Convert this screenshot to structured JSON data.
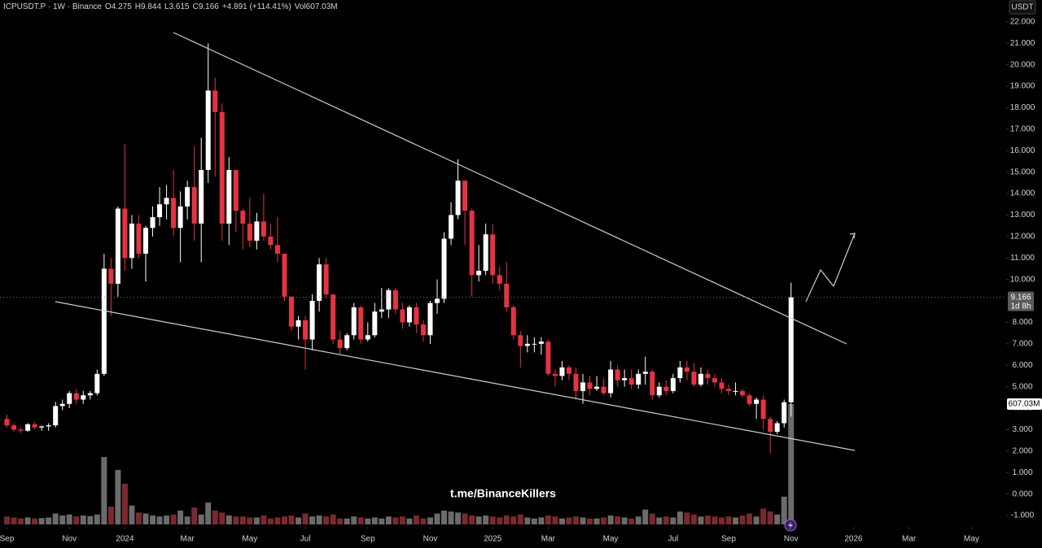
{
  "chart_data": {
    "type": "candlestick",
    "header": [
      "ICPUSDT.P · 1W · Binance",
      "O4.275",
      "H9.844",
      "L3.615",
      "C9.166",
      "+4.891 (+114.41%)",
      "Vol607.03M"
    ],
    "y_axis_label": "USDT",
    "last_price_label": "9.166",
    "countdown": "1d 8h",
    "volume_label": "607.03M",
    "watermark": "t.me/BinanceKillers",
    "up_color": "#ffffff",
    "down_color": "#e53341",
    "volume_up_color": "#6b6b6b",
    "volume_down_color": "#7a2a2f",
    "xlim": [
      -1,
      144
    ],
    "ylim": [
      -1.53,
      23.02
    ],
    "xticks": [
      {
        "value": 0,
        "label": "Sep"
      },
      {
        "value": 9,
        "label": "Nov"
      },
      {
        "value": 17,
        "label": "2024"
      },
      {
        "value": 26,
        "label": "Mar"
      },
      {
        "value": 35,
        "label": "May"
      },
      {
        "value": 43,
        "label": "Jul"
      },
      {
        "value": 52,
        "label": "Sep"
      },
      {
        "value": 61,
        "label": "Nov"
      },
      {
        "value": 70,
        "label": "2025"
      },
      {
        "value": 78,
        "label": "Mar"
      },
      {
        "value": 87,
        "label": "May"
      },
      {
        "value": 96,
        "label": "Jul"
      },
      {
        "value": 104,
        "label": "Sep"
      },
      {
        "value": 113,
        "label": "Nov"
      },
      {
        "value": 122,
        "label": "2026"
      },
      {
        "value": 130,
        "label": "Mar"
      },
      {
        "value": 139,
        "label": "May"
      }
    ],
    "yticks": [
      {
        "value": 22,
        "label": "22.000"
      },
      {
        "value": 21,
        "label": "21.000"
      },
      {
        "value": 20,
        "label": "20.000"
      },
      {
        "value": 19,
        "label": "19.000"
      },
      {
        "value": 18,
        "label": "18.000"
      },
      {
        "value": 17,
        "label": "17.000"
      },
      {
        "value": 16,
        "label": "16.000"
      },
      {
        "value": 15,
        "label": "15.000"
      },
      {
        "value": 14,
        "label": "14.000"
      },
      {
        "value": 13,
        "label": "13.000"
      },
      {
        "value": 12,
        "label": "12.000"
      },
      {
        "value": 11,
        "label": "11.000"
      },
      {
        "value": 10,
        "label": "10.000"
      },
      {
        "value": 8,
        "label": "8.000"
      },
      {
        "value": 7,
        "label": "7.000"
      },
      {
        "value": 6,
        "label": "6.000"
      },
      {
        "value": 5,
        "label": "5.000"
      },
      {
        "value": 4,
        "label": "4.000"
      },
      {
        "value": 3,
        "label": "3.000"
      },
      {
        "value": 2,
        "label": "2.000"
      },
      {
        "value": 1,
        "label": "1.000"
      },
      {
        "value": 0,
        "label": "0.000"
      },
      {
        "value": -1,
        "label": "-1.000"
      }
    ],
    "open": [
      3.5,
      3.2,
      3.0,
      2.95,
      3.25,
      3.1,
      3.15,
      3.2,
      4.1,
      4.2,
      4.7,
      4.4,
      4.6,
      4.7,
      5.6,
      10.5,
      9.8,
      13.3,
      11.0,
      12.6,
      11.2,
      12.4,
      12.9,
      13.5,
      13.8,
      12.4,
      13.4,
      14.3,
      12.6,
      15.1,
      18.8,
      17.8,
      12.6,
      15.1,
      13.2,
      12.6,
      11.8,
      12.7,
      12.0,
      11.6,
      11.2,
      9.2,
      7.8,
      8.1,
      7.2,
      9.0,
      10.7,
      9.3,
      7.2,
      6.8,
      7.4,
      8.7,
      7.2,
      7.4,
      8.5,
      8.6,
      9.5,
      8.6,
      8.0,
      8.7,
      7.9,
      7.4,
      8.9,
      9.1,
      11.9,
      13.0,
      14.6,
      13.2,
      10.2,
      10.4,
      12.1,
      10.2,
      9.8,
      8.7,
      7.4,
      6.9,
      7.0,
      7.0,
      7.1,
      5.6,
      5.5,
      5.9,
      5.6,
      4.8,
      5.2,
      4.9,
      5.0,
      4.7,
      5.8,
      5.3,
      5.4,
      5.1,
      5.6,
      5.7,
      4.6,
      5.0,
      4.8,
      5.4,
      5.9,
      5.7,
      5.1,
      5.6,
      5.4,
      5.2,
      4.9,
      4.8,
      4.8,
      4.6,
      4.2,
      4.4,
      3.5,
      2.9,
      3.3,
      4.275
    ],
    "high": [
      3.7,
      3.3,
      3.1,
      3.3,
      3.35,
      3.2,
      3.3,
      4.3,
      4.4,
      4.8,
      4.9,
      4.8,
      4.8,
      5.8,
      11.2,
      11.0,
      13.4,
      16.3,
      13.0,
      13.0,
      12.5,
      13.4,
      14.3,
      14.4,
      15.1,
      14.1,
      14.6,
      16.2,
      16.6,
      21.0,
      19.4,
      18.2,
      15.7,
      15.1,
      13.3,
      13.8,
      13.1,
      14.0,
      12.6,
      12.9,
      11.2,
      9.2,
      8.3,
      8.3,
      9.3,
      11.0,
      11.0,
      9.3,
      7.6,
      7.5,
      8.9,
      8.8,
      8.0,
      8.9,
      9.6,
      9.6,
      9.6,
      8.9,
      8.8,
      8.9,
      8.1,
      9.0,
      10.0,
      12.2,
      13.6,
      15.6,
      14.6,
      13.3,
      11.6,
      12.6,
      12.6,
      10.6,
      10.8,
      8.8,
      7.6,
      7.4,
      7.3,
      7.3,
      7.2,
      5.8,
      6.2,
      6.0,
      5.9,
      5.6,
      5.5,
      5.5,
      5.4,
      6.2,
      6.0,
      5.8,
      5.8,
      5.8,
      6.4,
      5.8,
      5.2,
      5.3,
      5.6,
      6.2,
      6.2,
      6.1,
      5.9,
      5.8,
      5.6,
      5.4,
      5.1,
      5.2,
      4.9,
      4.7,
      4.5,
      4.6,
      3.6,
      3.4,
      4.4,
      9.844
    ],
    "low": [
      3.1,
      2.9,
      2.85,
      2.9,
      3.0,
      2.95,
      2.95,
      3.1,
      3.9,
      4.0,
      4.2,
      4.2,
      4.4,
      4.6,
      5.5,
      8.3,
      9.2,
      10.4,
      10.5,
      11.0,
      9.9,
      12.0,
      12.5,
      12.8,
      12.0,
      10.8,
      12.8,
      11.8,
      10.8,
      14.5,
      14.8,
      11.8,
      11.6,
      12.2,
      11.4,
      11.5,
      11.4,
      11.8,
      11.4,
      10.8,
      9.0,
      7.6,
      7.2,
      5.8,
      6.7,
      8.5,
      9.1,
      7.0,
      6.5,
      6.7,
      7.2,
      7.0,
      7.1,
      7.3,
      8.2,
      8.2,
      8.4,
      7.7,
      7.8,
      7.5,
      7.1,
      7.0,
      8.4,
      8.9,
      11.6,
      12.8,
      11.6,
      9.2,
      9.9,
      10.2,
      9.8,
      9.5,
      8.5,
      7.2,
      5.9,
      6.6,
      6.6,
      6.5,
      5.5,
      5.0,
      5.3,
      5.3,
      4.4,
      4.2,
      4.6,
      4.8,
      4.6,
      4.5,
      5.0,
      5.0,
      4.9,
      4.9,
      5.1,
      4.4,
      4.5,
      4.6,
      4.7,
      5.2,
      5.3,
      5.0,
      5.0,
      5.1,
      5.0,
      4.7,
      4.6,
      4.6,
      4.5,
      4.1,
      3.5,
      3.0,
      1.9,
      2.8,
      3.1,
      3.615
    ],
    "close": [
      3.2,
      3.0,
      2.95,
      3.25,
      3.1,
      3.15,
      3.2,
      4.1,
      4.2,
      4.7,
      4.4,
      4.6,
      4.7,
      5.6,
      10.5,
      9.8,
      13.3,
      11.0,
      12.6,
      11.2,
      12.4,
      12.9,
      13.5,
      13.8,
      12.4,
      13.4,
      14.3,
      12.6,
      15.1,
      18.8,
      17.8,
      12.6,
      15.1,
      13.2,
      12.6,
      11.8,
      12.7,
      12.0,
      11.6,
      11.2,
      9.2,
      7.8,
      8.1,
      7.2,
      9.0,
      10.7,
      9.3,
      7.2,
      6.8,
      7.4,
      8.7,
      7.2,
      7.4,
      8.5,
      8.6,
      9.5,
      8.6,
      8.0,
      8.7,
      7.9,
      7.4,
      8.9,
      9.1,
      11.9,
      13.0,
      14.6,
      13.2,
      10.2,
      10.4,
      12.1,
      10.2,
      9.8,
      8.7,
      7.4,
      6.9,
      7.0,
      7.0,
      7.1,
      5.6,
      5.5,
      5.9,
      5.6,
      4.8,
      5.2,
      4.9,
      5.0,
      4.7,
      5.8,
      5.3,
      5.4,
      5.1,
      5.6,
      5.7,
      4.6,
      5.0,
      4.8,
      5.4,
      5.9,
      5.7,
      5.1,
      5.6,
      5.4,
      5.2,
      4.9,
      4.8,
      4.8,
      4.6,
      4.2,
      4.4,
      3.5,
      2.9,
      3.3,
      4.275,
      9.166
    ],
    "volume": [
      40,
      35,
      30,
      35,
      30,
      32,
      35,
      55,
      45,
      50,
      40,
      45,
      42,
      50,
      340,
      90,
      275,
      205,
      95,
      60,
      55,
      45,
      40,
      45,
      50,
      70,
      40,
      85,
      50,
      110,
      70,
      60,
      45,
      40,
      40,
      35,
      35,
      45,
      30,
      35,
      40,
      45,
      35,
      55,
      40,
      45,
      40,
      50,
      30,
      30,
      40,
      35,
      30,
      35,
      30,
      40,
      35,
      40,
      30,
      45,
      30,
      35,
      55,
      70,
      65,
      60,
      55,
      45,
      40,
      45,
      40,
      35,
      45,
      40,
      50,
      35,
      30,
      35,
      45,
      40,
      30,
      35,
      40,
      35,
      30,
      30,
      35,
      45,
      40,
      35,
      30,
      40,
      75,
      55,
      35,
      40,
      35,
      65,
      60,
      50,
      40,
      45,
      40,
      35,
      40,
      35,
      45,
      55,
      40,
      80,
      65,
      50,
      140,
      607.03
    ]
  }
}
